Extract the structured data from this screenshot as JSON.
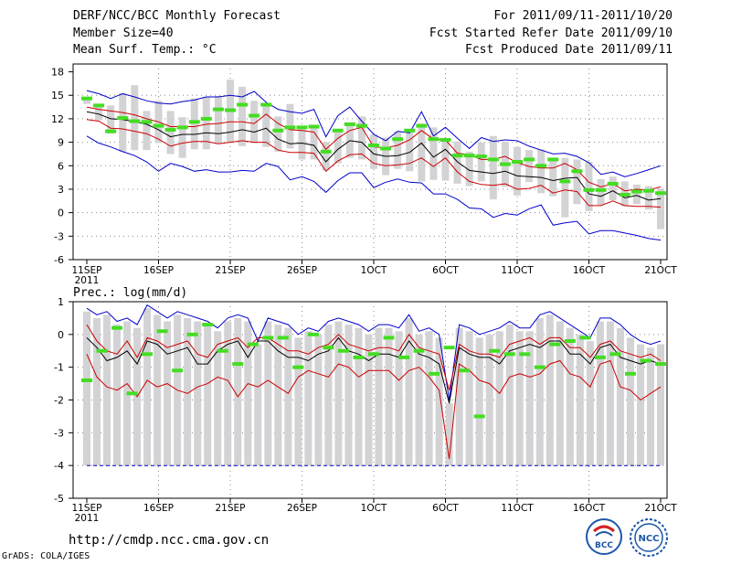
{
  "header": {
    "title": "DERF/NCC/BCC Monthly Forecast",
    "member": "Member Size=40",
    "variable": "Mean Surf. Temp.: °C",
    "period": "For 2011/09/11-2011/10/20",
    "started": "Fcst Started Refer Date 2011/09/10",
    "produced": "Fcst Produced Date 2011/09/11"
  },
  "footer": {
    "url": "http://cmdp.ncc.cma.gov.cn",
    "grads": "GrADS: COLA/IGES",
    "logo_bcc": "BCC",
    "logo_ncc": "NCC"
  },
  "colors": {
    "mean": "#000000",
    "spread_1sd": "#cc0000",
    "spread_max": "#0000cc",
    "box": "#d3d3d5",
    "obs": "#44dd22",
    "grid": "#888888"
  },
  "chart_data": [
    {
      "type": "line",
      "panel": "temperature",
      "ylabel": "Mean Surf. Temp.: °C",
      "ylim": [
        -6,
        19
      ],
      "yticks": [
        "-6",
        "-3",
        "0",
        "3",
        "6",
        "9",
        "12",
        "15",
        "18"
      ],
      "x_tick_labels": [
        "11SEP",
        "16SEP",
        "21SEP",
        "26SEP",
        "1OCT",
        "6OCT",
        "11OCT",
        "16OCT",
        "21OCT"
      ],
      "x_tick_days": [
        1,
        6,
        11,
        16,
        21,
        26,
        31,
        36,
        41
      ],
      "x_sub_label": "2011",
      "series": [
        {
          "name": "ensemble mean",
          "values": [
            12.9,
            12.6,
            12.0,
            11.9,
            11.6,
            11.3,
            10.6,
            9.7,
            10.0,
            10.0,
            10.2,
            10.1,
            10.3,
            10.6,
            10.3,
            10.8,
            9.4,
            8.8,
            8.9,
            8.6,
            6.5,
            8.1,
            9.2,
            9.0,
            7.5,
            7.2,
            7.3,
            7.7,
            8.9,
            7.1,
            8.1,
            6.5,
            5.4,
            5.2,
            5.0,
            5.3,
            4.7,
            4.6,
            4.5,
            4.1,
            4.4,
            4.5,
            2.4,
            2.1,
            2.8,
            1.9,
            2.2,
            1.6,
            1.8
          ]
        },
        {
          "name": "mean + 1 sd",
          "values": [
            13.5,
            13.2,
            13.0,
            12.8,
            12.5,
            12.0,
            11.6,
            11.0,
            11.0,
            11.0,
            11.3,
            11.4,
            11.6,
            11.6,
            11.4,
            12.6,
            11.4,
            10.6,
            10.5,
            10.3,
            8.1,
            9.5,
            10.5,
            10.9,
            8.4,
            8.3,
            8.6,
            9.3,
            10.5,
            9.4,
            9.3,
            7.6,
            7.4,
            6.8,
            6.8,
            7.2,
            6.4,
            5.9,
            5.7,
            5.7,
            6.3,
            5.5,
            3.9,
            3.3,
            3.7,
            2.8,
            3.0,
            2.9,
            3.3
          ]
        },
        {
          "name": "mean - 1 sd",
          "values": [
            11.9,
            11.7,
            10.8,
            10.7,
            10.4,
            10.1,
            9.4,
            8.5,
            8.9,
            9.1,
            9.1,
            8.8,
            9.0,
            9.2,
            9.0,
            9.0,
            8.0,
            7.7,
            7.7,
            7.6,
            5.3,
            6.6,
            7.4,
            7.5,
            6.3,
            6.0,
            6.1,
            6.3,
            7.0,
            5.9,
            7.0,
            5.2,
            4.0,
            3.6,
            3.5,
            3.7,
            3.0,
            3.1,
            3.5,
            2.5,
            2.9,
            2.7,
            0.9,
            0.9,
            1.5,
            0.9,
            0.8,
            0.8,
            0.7
          ]
        },
        {
          "name": "ensemble max",
          "values": [
            15.6,
            15.2,
            14.6,
            15.2,
            14.8,
            14.3,
            14.0,
            13.9,
            14.2,
            14.4,
            14.8,
            14.8,
            15.0,
            14.8,
            15.5,
            14.1,
            13.2,
            12.9,
            12.7,
            13.2,
            9.7,
            12.4,
            13.5,
            11.7,
            10.0,
            9.2,
            10.4,
            10.2,
            12.9,
            9.8,
            10.9,
            9.5,
            8.2,
            9.6,
            9.1,
            9.3,
            9.2,
            8.5,
            8.0,
            7.5,
            7.6,
            7.2,
            6.4,
            4.9,
            5.2,
            4.6,
            5.0,
            5.5,
            6.0
          ]
        },
        {
          "name": "ensemble min",
          "values": [
            9.8,
            8.9,
            8.4,
            7.8,
            7.3,
            6.5,
            5.3,
            6.3,
            5.9,
            5.3,
            5.5,
            5.2,
            5.2,
            5.4,
            5.3,
            6.3,
            5.9,
            4.2,
            4.6,
            4.0,
            2.6,
            4.1,
            5.1,
            5.1,
            3.2,
            3.9,
            4.3,
            3.9,
            3.8,
            2.4,
            2.4,
            1.7,
            0.6,
            0.5,
            -0.6,
            -0.1,
            -0.3,
            0.5,
            1.0,
            -1.6,
            -1.3,
            -1.1,
            -2.7,
            -2.3,
            -2.3,
            -2.6,
            -2.9,
            -3.3,
            -3.5
          ]
        },
        {
          "name": "observed",
          "values": [
            14.6,
            13.7,
            10.4,
            12.1,
            11.7,
            11.6,
            11.1,
            10.6,
            10.9,
            11.6,
            12.0,
            13.2,
            13.1,
            13.8,
            12.4,
            13.8,
            10.5,
            10.9,
            10.9,
            11.0,
            7.8,
            10.5,
            11.3,
            11.1,
            8.6,
            8.2,
            9.4,
            10.5,
            11.1,
            9.4,
            9.3,
            7.3,
            7.3,
            7.2,
            6.8,
            6.2,
            6.5,
            6.8,
            6.0,
            6.8,
            4.0,
            5.3,
            2.9,
            2.9,
            3.7,
            2.3,
            2.7,
            2.8,
            2.5
          ]
        },
        {
          "name": "box upper",
          "values": [
            14.8,
            13.9,
            13.7,
            15.3,
            16.3,
            13.0,
            14.3,
            13.0,
            12.2,
            14.6,
            14.8,
            14.9,
            17.0,
            16.1,
            14.3,
            13.6,
            12.3,
            13.9,
            11.0,
            11.2,
            9.0,
            10.6,
            11.5,
            12.3,
            10.0,
            9.6,
            10.4,
            10.7,
            11.4,
            10.9,
            9.2,
            9.1,
            7.8,
            9.0,
            9.8,
            9.1,
            8.4,
            8.0,
            8.1,
            7.0,
            7.0,
            6.8,
            6.5,
            4.3,
            4.6,
            4.0,
            3.6,
            3.4,
            3.1
          ]
        },
        {
          "name": "box lower",
          "values": [
            13.9,
            11.8,
            10.1,
            7.8,
            8.0,
            8.0,
            8.9,
            7.5,
            7.0,
            8.1,
            8.1,
            8.8,
            8.9,
            8.5,
            8.9,
            8.4,
            7.8,
            8.2,
            6.8,
            6.8,
            5.4,
            6.3,
            7.0,
            6.8,
            5.6,
            4.8,
            5.6,
            5.3,
            4.0,
            4.2,
            4.1,
            3.7,
            3.4,
            4.0,
            1.7,
            3.3,
            2.2,
            3.9,
            2.5,
            2.1,
            -0.6,
            1.1,
            0.2,
            1.0,
            1.6,
            0.8,
            1.1,
            0.4,
            -2.1
          ]
        }
      ]
    },
    {
      "type": "line",
      "panel": "precipitation",
      "ylabel": "Prec.: log(mm/d)",
      "ylim": [
        -5,
        1
      ],
      "yticks": [
        "-5",
        "-4",
        "-3",
        "-2",
        "-1",
        "0",
        "1"
      ],
      "x_tick_labels": [
        "11SEP",
        "16SEP",
        "21SEP",
        "26SEP",
        "1OCT",
        "6OCT",
        "11OCT",
        "16OCT",
        "21OCT"
      ],
      "x_tick_days": [
        1,
        6,
        11,
        16,
        21,
        26,
        31,
        36,
        41
      ],
      "x_sub_label": "2011",
      "series": [
        {
          "name": "ensemble mean",
          "values": [
            -0.1,
            -0.4,
            -0.8,
            -0.7,
            -0.5,
            -0.9,
            -0.2,
            -0.3,
            -0.6,
            -0.5,
            -0.4,
            -0.9,
            -0.9,
            -0.5,
            -0.3,
            -0.2,
            -0.7,
            -0.2,
            -0.2,
            -0.5,
            -0.7,
            -0.7,
            -0.8,
            -0.6,
            -0.5,
            -0.1,
            -0.5,
            -0.6,
            -0.8,
            -0.6,
            -0.6,
            -0.7,
            -0.2,
            -0.6,
            -0.7,
            -0.9,
            -2.1,
            -0.4,
            -0.6,
            -0.7,
            -0.7,
            -0.9,
            -0.5,
            -0.4,
            -0.3,
            -0.4,
            -0.2,
            -0.2,
            -0.6,
            -0.6,
            -0.9,
            -0.4,
            -0.3,
            -0.7,
            -0.8,
            -0.9,
            -0.8,
            -0.9
          ]
        },
        {
          "name": "mean + 1 sd",
          "values": [
            0.3,
            -0.2,
            -0.5,
            -0.6,
            -0.2,
            -0.7,
            -0.1,
            -0.2,
            -0.4,
            -0.3,
            -0.2,
            -0.6,
            -0.7,
            -0.3,
            -0.2,
            -0.1,
            -0.4,
            -0.1,
            -0.1,
            -0.3,
            -0.5,
            -0.5,
            -0.6,
            -0.4,
            -0.3,
            0.0,
            -0.3,
            -0.4,
            -0.5,
            -0.4,
            -0.4,
            -0.5,
            0.0,
            -0.4,
            -0.5,
            -0.6,
            -1.7,
            -0.3,
            -0.5,
            -0.6,
            -0.6,
            -0.7,
            -0.3,
            -0.2,
            -0.1,
            -0.3,
            -0.1,
            -0.1,
            -0.4,
            -0.4,
            -0.7,
            -0.3,
            -0.2,
            -0.5,
            -0.6,
            -0.7,
            -0.6,
            -0.8
          ]
        },
        {
          "name": "mean - 1 sd",
          "values": [
            -0.6,
            -1.3,
            -1.6,
            -1.7,
            -1.5,
            -1.9,
            -1.4,
            -1.6,
            -1.5,
            -1.7,
            -1.8,
            -1.6,
            -1.5,
            -1.3,
            -1.4,
            -1.9,
            -1.5,
            -1.6,
            -1.4,
            -1.6,
            -1.8,
            -1.3,
            -1.1,
            -1.2,
            -1.3,
            -0.9,
            -1.0,
            -1.3,
            -1.1,
            -1.1,
            -1.1,
            -1.4,
            -1.1,
            -1.0,
            -1.3,
            -1.7,
            -3.8,
            -0.9,
            -1.1,
            -1.4,
            -1.5,
            -1.8,
            -1.3,
            -1.2,
            -1.3,
            -1.2,
            -0.9,
            -0.8,
            -1.2,
            -1.3,
            -1.6,
            -0.9,
            -0.8,
            -1.6,
            -1.7,
            -2.0,
            -1.8,
            -1.6
          ]
        },
        {
          "name": "ensemble max",
          "values": [
            0.8,
            0.6,
            0.7,
            0.4,
            0.5,
            0.3,
            0.9,
            0.7,
            0.5,
            0.7,
            0.6,
            0.5,
            0.4,
            0.2,
            0.5,
            0.6,
            0.5,
            -0.2,
            0.5,
            0.4,
            0.3,
            0.0,
            0.2,
            0.1,
            0.4,
            0.5,
            0.4,
            0.3,
            0.1,
            0.3,
            0.3,
            0.2,
            0.6,
            0.1,
            0.2,
            0.0,
            -2.0,
            0.3,
            0.2,
            0.0,
            0.1,
            0.2,
            0.4,
            0.2,
            0.2,
            0.6,
            0.7,
            0.5,
            0.3,
            0.1,
            -0.1,
            0.5,
            0.5,
            0.3,
            0.0,
            -0.2,
            -0.3,
            -0.2
          ]
        },
        {
          "name": "ensemble min",
          "values": [
            -4.0,
            -4.0,
            -4.0,
            -4.0,
            -4.0,
            -4.0,
            -4.0,
            -4.0,
            -4.0,
            -4.0,
            -4.0,
            -4.0,
            -4.0,
            -4.0,
            -4.0,
            -4.0,
            -4.0,
            -4.0,
            -4.0,
            -4.0,
            -4.0,
            -4.0,
            -4.0,
            -4.0,
            -4.0,
            -4.0,
            -4.0,
            -4.0,
            -4.0,
            -4.0,
            -4.0,
            -4.0,
            -4.0,
            -4.0,
            -4.0,
            -4.0,
            -4.0,
            -4.0,
            -4.0,
            -4.0,
            -4.0,
            -4.0,
            -4.0,
            -4.0,
            -4.0,
            -4.0,
            -4.0,
            -4.0,
            -4.0,
            -4.0,
            -4.0,
            -4.0,
            -4.0,
            -4.0,
            -4.0,
            -4.0,
            -4.0,
            -4.0
          ]
        },
        {
          "name": "observed",
          "values": [
            -1.4,
            -0.5,
            0.2,
            -1.8,
            -0.6,
            0.1,
            -1.1,
            0.0,
            0.3,
            -0.5,
            -0.9,
            -0.3,
            -0.1,
            -0.1,
            -1.0,
            0.0,
            -0.4,
            -0.5,
            -0.7,
            -0.6,
            -0.1,
            -0.7,
            -0.5,
            -1.2,
            -0.4,
            -1.1,
            -2.5,
            -0.5,
            -0.6,
            -0.6,
            -1.0,
            -0.3,
            -0.2,
            -0.1,
            -0.7,
            -0.6,
            -1.2,
            -0.8,
            -0.9
          ]
        }
      ]
    }
  ]
}
